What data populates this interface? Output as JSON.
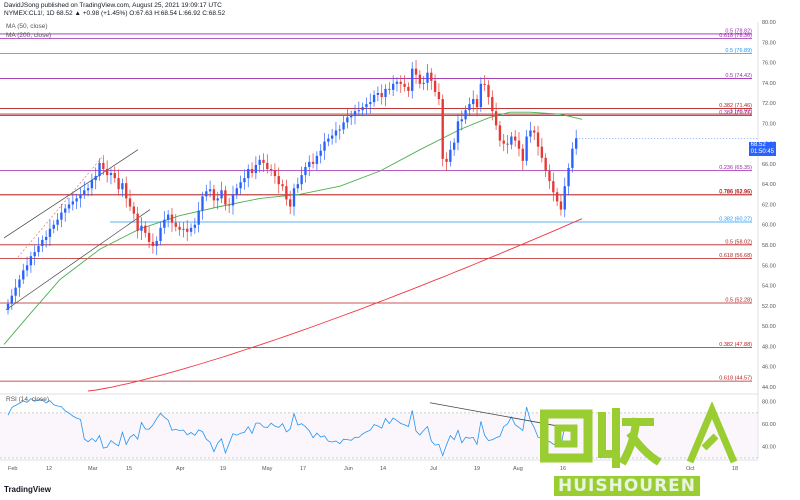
{
  "header": {
    "line1": "DavidJSong published on TradingView.com, August 25, 2021 19:09:17 UTC",
    "line2": "NYMEX:CL1!, 1D  68.52  ▲ +0.98 (+1.45%)  O:67.63  H:68.54  L:66.92  C:68.52"
  },
  "indicators": {
    "ma50": "MA (50, close)",
    "ma200": "MA (200, close)",
    "rsi": "RSI (14, close)"
  },
  "footer": {
    "logo": "TradingView"
  },
  "watermark": {
    "en": "HUISHOUREN"
  },
  "price_tag": {
    "price": "68.52",
    "countdown": "01:50:45"
  },
  "colors": {
    "up": "#2962ff",
    "down": "#e53935",
    "ma50": "#4caf50",
    "ma200": "#f23645",
    "fib": "#9c27b0",
    "fib_red": "#b71c1c",
    "rsi": "#2196f3",
    "watermark": "#9acd32"
  },
  "chart_data": {
    "type": "candlestick",
    "x_ticks": [
      "Feb",
      "12",
      "Mar",
      "15",
      "Apr",
      "19",
      "May",
      "17",
      "Jun",
      "14",
      "Jul",
      "19",
      "Aug",
      "16",
      "Oct",
      "18"
    ],
    "y_ticks": [
      44.0,
      46.0,
      48.0,
      50.0,
      52.0,
      54.0,
      56.0,
      58.0,
      60.0,
      62.0,
      64.0,
      66.0,
      68.0,
      70.0,
      72.0,
      74.0,
      76.0,
      78.0,
      80.0
    ],
    "ylim": [
      43.5,
      80
    ],
    "fib_levels": [
      {
        "label": "0.5 (78.82)",
        "value": 78.82,
        "color": "fib"
      },
      {
        "label": "0.618 (78.36)",
        "value": 78.36,
        "color": "fib"
      },
      {
        "label": "0.5 (76.89)",
        "value": 76.89,
        "color": "rsi"
      },
      {
        "label": "0.5 (74.42)",
        "value": 74.42,
        "color": "fib"
      },
      {
        "label": "0.382 (71.46)",
        "value": 71.46,
        "color": "fib_red"
      },
      {
        "label": "1 (70.92)",
        "value": 70.92,
        "color": "fib_red"
      },
      {
        "label": "0.382 (70.77)",
        "value": 70.77,
        "color": "fib"
      },
      {
        "label": "0.236 (65.35)",
        "value": 65.35,
        "color": "fib"
      },
      {
        "label": "0.786 (62.96)",
        "value": 62.96,
        "color": "fib_red"
      },
      {
        "label": "0.786 (62.95)",
        "value": 62.95,
        "color": "fib_red"
      },
      {
        "label": "0.382 (60.27)",
        "value": 60.27,
        "color": "rsi"
      },
      {
        "label": "0.5 (58.02)",
        "value": 58.02,
        "color": "fib_red"
      },
      {
        "label": "0.618 (56.68)",
        "value": 56.68,
        "color": "fib_red"
      },
      {
        "label": "0.5 (52.28)",
        "value": 52.28,
        "color": "fib_red"
      },
      {
        "label": "0.382 (47.88)",
        "value": 47.88,
        "color": "fib_red"
      },
      {
        "label": "0.618 (44.57)",
        "value": 44.57,
        "color": "fib_red"
      }
    ],
    "closes": [
      52.2,
      53.0,
      53.8,
      54.6,
      55.5,
      56.0,
      56.9,
      57.3,
      57.9,
      58.5,
      58.8,
      59.6,
      60.0,
      60.5,
      61.2,
      61.6,
      62.0,
      62.3,
      62.6,
      63.0,
      63.4,
      63.6,
      64.4,
      64.8,
      66.1,
      65.5,
      64.9,
      65.1,
      64.6,
      63.5,
      64.1,
      62.6,
      61.8,
      61.1,
      59.4,
      59.9,
      59.2,
      58.3,
      57.9,
      58.4,
      59.7,
      60.5,
      61.0,
      60.2,
      59.8,
      59.5,
      59.6,
      59.3,
      59.7,
      60.0,
      61.4,
      62.8,
      63.3,
      63.5,
      62.4,
      62.6,
      63.4,
      62.0,
      61.9,
      63.0,
      63.6,
      64.2,
      64.6,
      65.5,
      65.1,
      65.9,
      66.4,
      66.1,
      65.5,
      65.4,
      64.8,
      64.0,
      63.8,
      62.5,
      61.8,
      63.6,
      64.0,
      64.9,
      65.7,
      66.2,
      66.0,
      66.8,
      67.3,
      68.2,
      68.5,
      68.8,
      69.3,
      69.4,
      70.1,
      70.6,
      70.8,
      71.2,
      71.3,
      71.6,
      71.9,
      72.1,
      72.8,
      73.0,
      72.6,
      73.4,
      73.3,
      73.9,
      74.1,
      73.9,
      73.6,
      73.2,
      75.4,
      74.8,
      73.9,
      74.0,
      75.0,
      74.2,
      73.1,
      72.4,
      66.5,
      66.2,
      67.4,
      68.1,
      70.2,
      70.4,
      71.3,
      71.9,
      72.4,
      71.6,
      73.9,
      73.8,
      72.6,
      71.2,
      69.8,
      68.3,
      68.0,
      67.9,
      68.7,
      68.3,
      67.5,
      66.3,
      68.7,
      69.3,
      69.1,
      67.7,
      66.6,
      65.3,
      64.3,
      63.2,
      62.3,
      61.5,
      63.8,
      65.6,
      67.5,
      68.52
    ],
    "x": [
      "Feb",
      "12",
      "Mar",
      "15",
      "Apr",
      "19",
      "May",
      "17",
      "Jun",
      "14",
      "Jul",
      "19",
      "Aug"
    ],
    "ma50_last": 70.92,
    "ma200_last": 60.6,
    "rsi_ylim": [
      30,
      85
    ],
    "rsi_ticks": [
      40.0,
      60.0,
      80.0
    ]
  }
}
